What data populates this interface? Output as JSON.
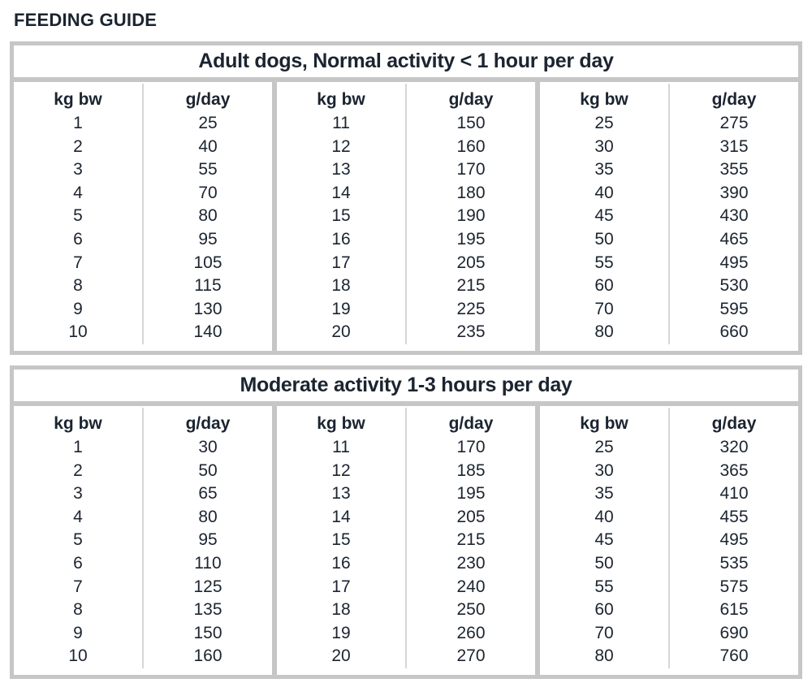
{
  "title": "FEEDING GUIDE",
  "colors": {
    "text": "#1b2430",
    "border": "#c6c6c6",
    "thin_line": "#d6d6d6",
    "background": "#ffffff"
  },
  "col_headers": {
    "weight": "kg bw",
    "amount": "g/day"
  },
  "tables": [
    {
      "title": "Adult dogs, Normal activity < 1 hour per day",
      "pairs": [
        {
          "weights": [
            1,
            2,
            3,
            4,
            5,
            6,
            7,
            8,
            9,
            10
          ],
          "amounts": [
            25,
            40,
            55,
            70,
            80,
            95,
            105,
            115,
            130,
            140
          ]
        },
        {
          "weights": [
            11,
            12,
            13,
            14,
            15,
            16,
            17,
            18,
            19,
            20
          ],
          "amounts": [
            150,
            160,
            170,
            180,
            190,
            195,
            205,
            215,
            225,
            235
          ]
        },
        {
          "weights": [
            25,
            30,
            35,
            40,
            45,
            50,
            55,
            60,
            70,
            80
          ],
          "amounts": [
            275,
            315,
            355,
            390,
            430,
            465,
            495,
            530,
            595,
            660
          ]
        }
      ]
    },
    {
      "title": "Moderate activity 1-3 hours per day",
      "pairs": [
        {
          "weights": [
            1,
            2,
            3,
            4,
            5,
            6,
            7,
            8,
            9,
            10
          ],
          "amounts": [
            30,
            50,
            65,
            80,
            95,
            110,
            125,
            135,
            150,
            160
          ]
        },
        {
          "weights": [
            11,
            12,
            13,
            14,
            15,
            16,
            17,
            18,
            19,
            20
          ],
          "amounts": [
            170,
            185,
            195,
            205,
            215,
            230,
            240,
            250,
            260,
            270
          ]
        },
        {
          "weights": [
            25,
            30,
            35,
            40,
            45,
            50,
            55,
            60,
            70,
            80
          ],
          "amounts": [
            320,
            365,
            410,
            455,
            495,
            535,
            575,
            615,
            690,
            760
          ]
        }
      ]
    }
  ]
}
